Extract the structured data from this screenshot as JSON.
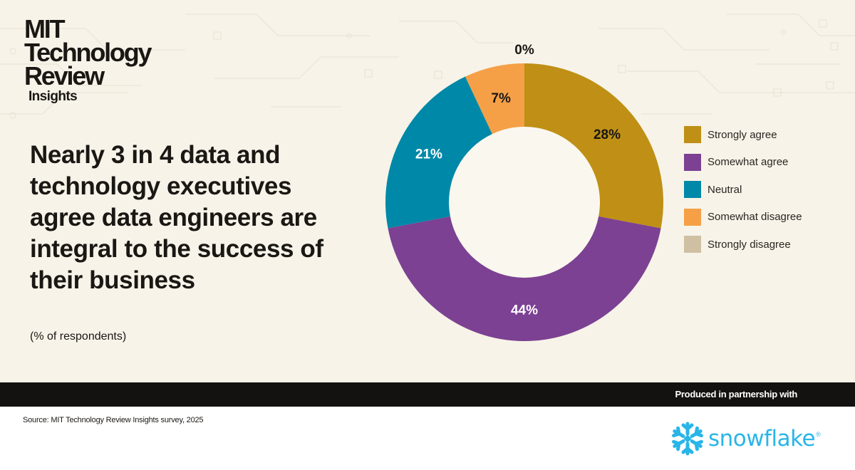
{
  "brand": {
    "logo_lines": [
      "MIT",
      "Technology",
      "Review"
    ],
    "logo_sub": "Insights"
  },
  "headline": "Nearly 3 in 4 data and technology executives agree data engineers are integral to the success of their business",
  "unit_note": "(% of respondents)",
  "chart_data": {
    "type": "donut",
    "title": "Nearly 3 in 4 data and technology executives agree data engineers are integral to the success of their business",
    "subtitle": "(% of respondents)",
    "unit": "%",
    "legend_position": "right",
    "slices": [
      {
        "label": "Strongly agree",
        "value": 28,
        "display": "28%",
        "color": "#bf9015",
        "text_color": "#1a1714"
      },
      {
        "label": "Somewhat agree",
        "value": 44,
        "display": "44%",
        "color": "#7c4192",
        "text_color": "#ffffff"
      },
      {
        "label": "Neutral",
        "value": 21,
        "display": "21%",
        "color": "#0088a8",
        "text_color": "#ffffff"
      },
      {
        "label": "Somewhat disagree",
        "value": 7,
        "display": "7%",
        "color": "#f5a047",
        "text_color": "#1a1714"
      },
      {
        "label": "Strongly disagree",
        "value": 0,
        "display": "0%",
        "color": "#cfc0a3",
        "text_color": "#1a1714"
      }
    ]
  },
  "footer": {
    "partner_text": "Produced in partnership with",
    "source": "Source: MIT Technology Review Insights survey, 2025",
    "partner_logo": {
      "name": "snowflake",
      "registered": "®",
      "icon": "snowflake-icon",
      "color": "#29b5e8"
    }
  }
}
